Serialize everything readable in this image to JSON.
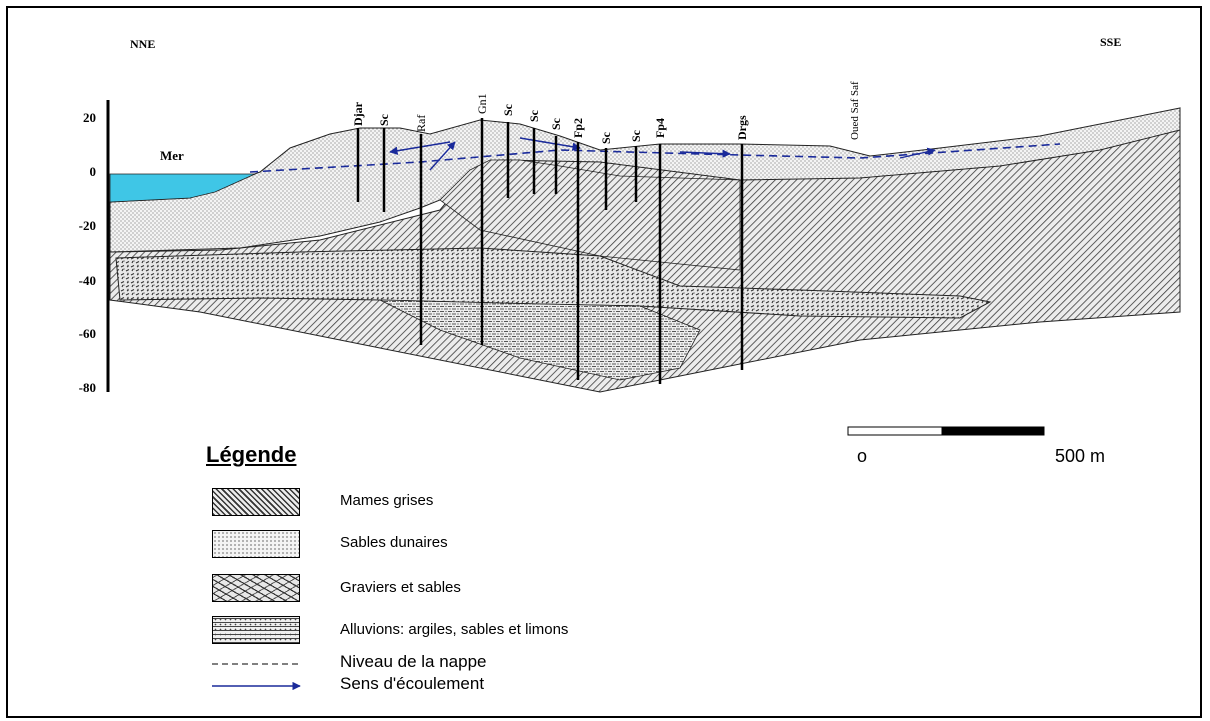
{
  "directions": {
    "left": "NNE",
    "right": "SSE"
  },
  "y_axis_ticks": [
    "20",
    "0",
    "-20",
    "-40",
    "-60",
    "-80"
  ],
  "sea_label": "Mer",
  "wells": [
    {
      "label": "Djar"
    },
    {
      "label": "Sc"
    },
    {
      "label": "Raf"
    },
    {
      "label": "Gn1"
    },
    {
      "label": "Sc"
    },
    {
      "label": "Sc"
    },
    {
      "label": "Sc"
    },
    {
      "label": "Fp2"
    },
    {
      "label": "Sc"
    },
    {
      "label": "Sc"
    },
    {
      "label": "Fp4"
    },
    {
      "label": "Drgs"
    }
  ],
  "river_label": "Oued Saf Saf",
  "scale": {
    "zero": "o",
    "length": "500 m"
  },
  "legend": {
    "title": "Légende",
    "items": [
      {
        "label": "Mames grises",
        "pattern": "marnes"
      },
      {
        "label": "Sables dunaires",
        "pattern": "sables"
      },
      {
        "label": "Graviers et sables",
        "pattern": "graviers"
      },
      {
        "label": "Alluvions: argiles, sables et limons",
        "pattern": "alluvions"
      },
      {
        "label": "Niveau de la nappe",
        "pattern": "dashed-line"
      },
      {
        "label": "Sens d'écoulement",
        "pattern": "arrow"
      }
    ]
  },
  "colors": {
    "sea": "#3fc6e6",
    "water_table": "#1a2a9a",
    "border": "#000000"
  }
}
